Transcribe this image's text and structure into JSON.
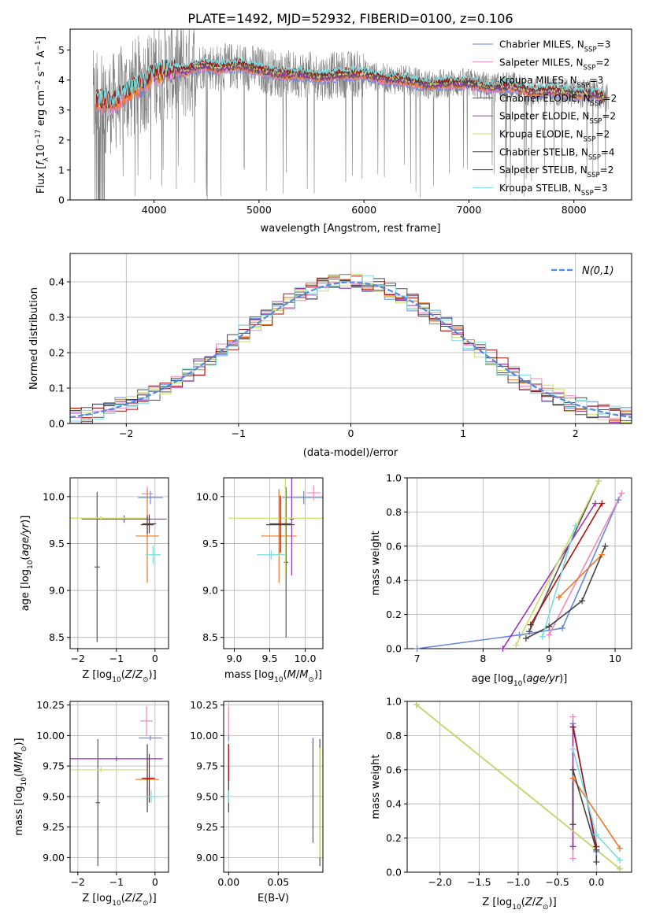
{
  "title": "PLATE=1492, MJD=52932, FIBERID=0100, z=0.106",
  "colors": {
    "Chabrier MILES": "#6688dd",
    "Salpeter MILES": "#ee88bb",
    "Kroupa MILES": "#ee7722",
    "Chabrier ELODIE": "#555555",
    "Salpeter ELODIE": "#9933bb",
    "Kroupa ELODIE": "#ccdd66",
    "Chabrier STELIB": "#444444",
    "Salpeter STELIB": "#aa1111",
    "Kroupa STELIB": "#77dddd",
    "grey": "#808080",
    "normal_curve": "#5588dd"
  },
  "legend_spectrum": [
    {
      "name": "Chabrier MILES",
      "label": "Chabrier MILES, N",
      "sub": "SSP",
      "suffix": "=3"
    },
    {
      "name": "Salpeter MILES",
      "label": "Salpeter MILES, N",
      "sub": "SSP",
      "suffix": "=2"
    },
    {
      "name": "Kroupa MILES",
      "label": "Kroupa MILES, N",
      "sub": "SSP",
      "suffix": "=3"
    },
    {
      "name": "Chabrier ELODIE",
      "label": "Chabrier ELODIE, N",
      "sub": "SSP",
      "suffix": "=2"
    },
    {
      "name": "Salpeter ELODIE",
      "label": "Salpeter ELODIE, N",
      "sub": "SSP",
      "suffix": "=2"
    },
    {
      "name": "Kroupa ELODIE",
      "label": "Kroupa ELODIE, N",
      "sub": "SSP",
      "suffix": "=2"
    },
    {
      "name": "Chabrier STELIB",
      "label": "Chabrier STELIB, N",
      "sub": "SSP",
      "suffix": "=4"
    },
    {
      "name": "Salpeter STELIB",
      "label": "Salpeter STELIB, N",
      "sub": "SSP",
      "suffix": "=2"
    },
    {
      "name": "Kroupa STELIB",
      "label": "Kroupa STELIB, N",
      "sub": "SSP",
      "suffix": "=3"
    }
  ],
  "chart_data": [
    {
      "type": "line",
      "id": "spectrum",
      "xlabel": "wavelength [Angstrom, rest frame]",
      "ylabel": "Flux [f_λ 10^-17 erg cm^-2 s^-1 A^-1]",
      "xlim": [
        3200,
        8550
      ],
      "ylim": [
        0,
        5.7
      ],
      "xticks": [
        4000,
        5000,
        6000,
        7000,
        8000
      ],
      "yticks": [
        0,
        1,
        2,
        3,
        4,
        5
      ],
      "grid": false,
      "legend": "top-right",
      "model_continuum": {
        "x": [
          3450,
          3600,
          3700,
          3800,
          3900,
          4000,
          4100,
          4200,
          4300,
          4400,
          4500,
          4600,
          4700,
          4800,
          5000,
          5200,
          5400,
          5600,
          5800,
          6000,
          6200,
          6400,
          6600,
          6800,
          7000,
          7200,
          7400,
          7600,
          7800,
          8000,
          8200,
          8300
        ],
        "y": [
          3.3,
          3.2,
          3.5,
          3.7,
          3.9,
          4.2,
          4.3,
          4.35,
          4.3,
          4.45,
          4.5,
          4.4,
          4.45,
          4.5,
          4.35,
          4.2,
          4.2,
          4.1,
          4.2,
          4.2,
          4.05,
          4.0,
          3.85,
          3.9,
          3.9,
          3.75,
          3.8,
          3.6,
          3.65,
          3.55,
          3.55,
          3.4
        ]
      },
      "observed": "noisy grey spectrum (3400-8330 Å) around the models, with deep spikes to 0"
    },
    {
      "type": "line",
      "id": "residuals",
      "xlabel": "(data-model)/error",
      "ylabel": "Normed distribution",
      "xlim": [
        -2.5,
        2.5
      ],
      "ylim": [
        0,
        0.48
      ],
      "xticks": [
        -2,
        -1,
        0,
        1,
        2
      ],
      "yticks": [
        0.0,
        0.1,
        0.2,
        0.3,
        0.4
      ],
      "grid": true,
      "legend": "top-right",
      "legend_label": "N(0,1)",
      "histogram_bin_width": 0.1,
      "note": "step histograms of residuals for the 9 model fits, approximately following N(0,1)"
    },
    {
      "type": "scatter",
      "id": "age_vs_Z",
      "xlabel": "Z [log10(Z/Z⊙)]",
      "ylabel": "age  [log10(age/yr)]",
      "xlim": [
        -2.2,
        0.35
      ],
      "ylim": [
        8.38,
        10.2
      ],
      "xticks": [
        -2,
        -1,
        0
      ],
      "yticks": [
        8.5,
        9.0,
        9.5,
        10.0
      ],
      "grid": true,
      "points": [
        {
          "name": "Chabrier MILES",
          "x": -0.12,
          "xerr": 0.32,
          "y": 9.99,
          "yerr": 0.07
        },
        {
          "name": "Salpeter MILES",
          "x": -0.2,
          "xerr": 0.15,
          "y": 10.03,
          "yerr": 0.08
        },
        {
          "name": "Kroupa MILES",
          "x": -0.2,
          "xerr": 0.3,
          "y": 9.58,
          "yerr": 0.5
        },
        {
          "name": "Chabrier ELODIE",
          "x": -1.5,
          "xerr": 0.07,
          "y": 9.25,
          "yerr": 0.8
        },
        {
          "name": "Salpeter ELODIE",
          "x": -0.8,
          "xerr": 1.1,
          "y": 9.76,
          "yerr": 0.04
        },
        {
          "name": "Kroupa ELODIE",
          "x": -1.4,
          "xerr": 1.2,
          "y": 9.77,
          "yerr": 0.02
        },
        {
          "name": "Chabrier STELIB",
          "x": -0.2,
          "xerr": 0.17,
          "y": 9.7,
          "yerr": 0.1
        },
        {
          "name": "Salpeter STELIB",
          "x": -0.15,
          "xerr": 0.18,
          "y": 9.71,
          "yerr": 0.1
        },
        {
          "name": "Kroupa STELIB",
          "x": -0.05,
          "xerr": 0.2,
          "y": 9.38,
          "yerr": 0.1
        }
      ]
    },
    {
      "type": "scatter",
      "id": "age_vs_mass",
      "xlabel": "mass [log10(M/M⊙)]",
      "ylabel": "",
      "xlim": [
        8.85,
        10.25
      ],
      "ylim": [
        8.38,
        10.2
      ],
      "xticks": [
        9.0,
        9.5,
        10.0
      ],
      "yticks": [
        8.5,
        9.0,
        9.5,
        10.0
      ],
      "grid": true,
      "points": [
        {
          "name": "Chabrier MILES",
          "x": 9.98,
          "xerr": 0.3,
          "y": 9.99,
          "yerr": 0.07
        },
        {
          "name": "Salpeter MILES",
          "x": 10.12,
          "xerr": 0.1,
          "y": 10.04,
          "yerr": 0.08
        },
        {
          "name": "Kroupa MILES",
          "x": 9.63,
          "xerr": 0.25,
          "y": 9.58,
          "yerr": 0.5
        },
        {
          "name": "Chabrier ELODIE",
          "x": 9.73,
          "xerr": 0.03,
          "y": 9.3,
          "yerr": 0.8
        },
        {
          "name": "Salpeter ELODIE",
          "x": 9.81,
          "xerr": 0.03,
          "y": 9.76,
          "yerr": 0.6
        },
        {
          "name": "Kroupa ELODIE",
          "x": 9.72,
          "xerr": 0.8,
          "y": 9.77,
          "yerr": 0.6
        },
        {
          "name": "Chabrier STELIB",
          "x": 9.65,
          "xerr": 0.2,
          "y": 9.7,
          "yerr": 0.3
        },
        {
          "name": "Salpeter STELIB",
          "x": 9.65,
          "xerr": 0.15,
          "y": 9.71,
          "yerr": 0.3
        },
        {
          "name": "Kroupa STELIB",
          "x": 9.52,
          "xerr": 0.2,
          "y": 9.38,
          "yerr": 0.05
        }
      ]
    },
    {
      "type": "line",
      "id": "weight_vs_age",
      "xlabel": "age  [log10(age/yr)]",
      "ylabel": "mass weight",
      "xlim": [
        6.85,
        10.25
      ],
      "ylim": [
        0,
        1.0
      ],
      "xticks": [
        7,
        8,
        9,
        10
      ],
      "yticks": [
        0.0,
        0.2,
        0.4,
        0.6,
        0.8,
        1.0
      ],
      "grid": true,
      "series": [
        {
          "name": "Chabrier MILES",
          "x": [
            7.0,
            8.55,
            9.2,
            10.05
          ],
          "y": [
            0.0,
            0.08,
            0.12,
            0.87
          ]
        },
        {
          "name": "Salpeter MILES",
          "x": [
            9.0,
            10.1
          ],
          "y": [
            0.08,
            0.91
          ]
        },
        {
          "name": "Kroupa MILES",
          "x": [
            9.15,
            9.8
          ],
          "y": [
            0.3,
            0.55
          ]
        },
        {
          "name": "Chabrier ELODIE",
          "x": [
            8.7,
            9.75
          ],
          "y": [
            0.1,
            0.98
          ]
        },
        {
          "name": "Salpeter ELODIE",
          "x": [
            8.3,
            9.7
          ],
          "y": [
            0.0,
            0.85
          ]
        },
        {
          "name": "Kroupa ELODIE",
          "x": [
            8.5,
            9.75
          ],
          "y": [
            0.02,
            0.98
          ]
        },
        {
          "name": "Chabrier STELIB",
          "x": [
            8.65,
            9.0,
            9.5,
            9.85
          ],
          "y": [
            0.06,
            0.13,
            0.28,
            0.6
          ]
        },
        {
          "name": "Salpeter STELIB",
          "x": [
            8.72,
            9.8
          ],
          "y": [
            0.14,
            0.85
          ]
        },
        {
          "name": "Kroupa STELIB",
          "x": [
            8.9,
            9.4
          ],
          "y": [
            0.07,
            0.72
          ]
        }
      ]
    },
    {
      "type": "scatter",
      "id": "mass_vs_Z",
      "xlabel": "Z [log10(Z/Z⊙)]",
      "ylabel": "mass [log10(M/M⊙)]",
      "xlim": [
        -2.2,
        0.35
      ],
      "ylim": [
        8.88,
        10.28
      ],
      "xticks": [
        -2,
        -1,
        0
      ],
      "yticks": [
        9.0,
        9.25,
        9.5,
        9.75,
        10.0,
        10.25
      ],
      "grid": true,
      "points": [
        {
          "name": "Chabrier MILES",
          "x": -0.12,
          "xerr": 0.3,
          "y": 9.98,
          "yerr": 0.02
        },
        {
          "name": "Salpeter MILES",
          "x": -0.22,
          "xerr": 0.16,
          "y": 10.12,
          "yerr": 0.12
        },
        {
          "name": "Kroupa MILES",
          "x": -0.2,
          "xerr": 0.3,
          "y": 9.64,
          "yerr": 0.15
        },
        {
          "name": "Chabrier ELODIE",
          "x": -1.48,
          "xerr": 0.05,
          "y": 9.45,
          "yerr": 0.52
        },
        {
          "name": "Salpeter ELODIE",
          "x": -1.0,
          "xerr": 1.2,
          "y": 9.81,
          "yerr": 0.02
        },
        {
          "name": "Kroupa ELODIE",
          "x": -1.4,
          "xerr": 1.2,
          "y": 9.72,
          "yerr": 0.02
        },
        {
          "name": "Chabrier STELIB",
          "x": -0.2,
          "xerr": 0.15,
          "y": 9.65,
          "yerr": 0.28
        },
        {
          "name": "Salpeter STELIB",
          "x": -0.15,
          "xerr": 0.15,
          "y": 9.65,
          "yerr": 0.2
        },
        {
          "name": "Kroupa STELIB",
          "x": -0.1,
          "xerr": 0.18,
          "y": 9.5,
          "yerr": 0.05
        }
      ]
    },
    {
      "type": "scatter",
      "id": "mass_vs_EBV",
      "xlabel": "E(B-V)",
      "ylabel": "",
      "xlim": [
        -0.005,
        0.095
      ],
      "ylim": [
        8.88,
        10.28
      ],
      "xticks": [
        0.0,
        0.05
      ],
      "yticks": [
        9.0,
        9.25,
        9.5,
        9.75,
        10.0,
        10.25
      ],
      "grid": true,
      "points": [
        {
          "name": "Chabrier MILES",
          "x": 0.0,
          "y": 9.98,
          "yerr": 0.02
        },
        {
          "name": "Salpeter MILES",
          "x": 0.0,
          "y": 10.12,
          "yerr": 0.12
        },
        {
          "name": "Kroupa MILES",
          "x": 0.0,
          "y": 9.64,
          "yerr": 0.15
        },
        {
          "name": "Chabrier ELODIE",
          "x": 0.092,
          "y": 9.45,
          "yerr": 0.52
        },
        {
          "name": "Salpeter ELODIE",
          "x": 0.085,
          "y": 9.55,
          "yerr": 0.43
        },
        {
          "name": "Kroupa ELODIE",
          "x": 0.092,
          "y": 9.45,
          "yerr": 0.45
        },
        {
          "name": "Chabrier STELIB",
          "x": 0.0,
          "y": 9.65,
          "yerr": 0.28
        },
        {
          "name": "Salpeter STELIB",
          "x": 0.0,
          "y": 9.78,
          "yerr": 0.15
        },
        {
          "name": "Kroupa STELIB",
          "x": 0.0,
          "y": 9.5,
          "yerr": 0.05
        }
      ]
    },
    {
      "type": "line",
      "id": "weight_vs_Z",
      "xlabel": "Z [log10(Z/Z⊙)]",
      "ylabel": "mass weight",
      "xlim": [
        -2.42,
        0.45
      ],
      "ylim": [
        0,
        1.0
      ],
      "xticks": [
        -2.0,
        -1.5,
        -1.0,
        -0.5,
        0.0
      ],
      "yticks": [
        0.0,
        0.2,
        0.4,
        0.6,
        0.8,
        1.0
      ],
      "grid": true,
      "series": [
        {
          "name": "Chabrier MILES",
          "x": [
            -0.3,
            0.0
          ],
          "y": [
            0.87,
            0.12
          ]
        },
        {
          "name": "Salpeter MILES",
          "x": [
            -0.3,
            -0.3
          ],
          "y": [
            0.08,
            0.91
          ]
        },
        {
          "name": "Kroupa MILES",
          "x": [
            -0.3,
            0.3
          ],
          "y": [
            0.55,
            0.14
          ]
        },
        {
          "name": "Chabrier ELODIE",
          "x": [
            -2.3,
            0.3
          ],
          "y": [
            0.98,
            0.02
          ]
        },
        {
          "name": "Salpeter ELODIE",
          "x": [
            -0.3,
            -0.3
          ],
          "y": [
            0.15,
            0.85
          ]
        },
        {
          "name": "Kroupa ELODIE",
          "x": [
            -2.3,
            0.3
          ],
          "y": [
            0.98,
            0.02
          ]
        },
        {
          "name": "Chabrier STELIB",
          "x": [
            -0.3,
            -0.3,
            0.0,
            0.0
          ],
          "y": [
            0.28,
            0.6,
            0.13,
            0.06
          ]
        },
        {
          "name": "Salpeter STELIB",
          "x": [
            -0.3,
            0.0
          ],
          "y": [
            0.85,
            0.15
          ]
        },
        {
          "name": "Kroupa STELIB",
          "x": [
            -0.3,
            0.0,
            0.3
          ],
          "y": [
            0.72,
            0.22,
            0.07
          ]
        }
      ]
    }
  ]
}
